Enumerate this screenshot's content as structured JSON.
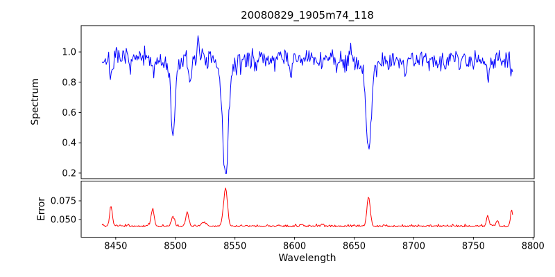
{
  "figure": {
    "background": "#ffffff"
  },
  "chart_data": [
    {
      "type": "line",
      "title": "20080829_1905m74_118",
      "ylabel": "Spectrum",
      "color": "#0000ff",
      "grid": false,
      "legend": "none",
      "xlim": [
        8421,
        8801
      ],
      "ylim": [
        0.163,
        1.174
      ],
      "yticks": [
        {
          "v": 0.2,
          "label": "0.2"
        },
        {
          "v": 0.4,
          "label": "0.4"
        },
        {
          "v": 0.6,
          "label": "0.6"
        },
        {
          "v": 0.8,
          "label": "0.8"
        },
        {
          "v": 1.0,
          "label": "1.0"
        }
      ],
      "x_start": 8438.5,
      "x_end": 8783.5,
      "x_step": 0.7,
      "continuum": 0.95,
      "noise": 0.12,
      "seed": 7,
      "absorption_lines": [
        {
          "center": 8498.0,
          "depth": 0.46,
          "width": 1.7
        },
        {
          "center": 8498.0,
          "depth": 0.05,
          "width": 5.0
        },
        {
          "center": 8542.1,
          "depth": 0.68,
          "width": 2.3
        },
        {
          "center": 8542.1,
          "depth": 0.08,
          "width": 7.0
        },
        {
          "center": 8662.1,
          "depth": 0.56,
          "width": 2.0
        },
        {
          "center": 8662.1,
          "depth": 0.07,
          "width": 6.0
        },
        {
          "center": 8446.0,
          "depth": 0.1,
          "width": 1.1
        },
        {
          "center": 8481.0,
          "depth": 0.09,
          "width": 1.2
        },
        {
          "center": 8512.0,
          "depth": 0.14,
          "width": 1.2
        },
        {
          "center": 8597.0,
          "depth": 0.1,
          "width": 0.8
        },
        {
          "center": 8693.0,
          "depth": 0.13,
          "width": 0.9
        },
        {
          "center": 8762.0,
          "depth": 0.1,
          "width": 1.0
        },
        {
          "center": 8782.0,
          "depth": 0.12,
          "width": 0.9
        }
      ],
      "emission_peaks": [
        {
          "center": 8519.5,
          "height": 0.17,
          "width": 0.9
        },
        {
          "center": 8647.0,
          "height": 0.09,
          "width": 0.8
        }
      ]
    },
    {
      "type": "line",
      "ylabel": "Error",
      "xlabel": "Wavelength",
      "color": "#ff0000",
      "grid": false,
      "legend": "none",
      "xlim": [
        8421,
        8801
      ],
      "ylim": [
        0.0264,
        0.1014
      ],
      "yticks": [
        {
          "v": 0.05,
          "label": "0.050"
        },
        {
          "v": 0.075,
          "label": "0.075"
        }
      ],
      "xticks": [
        {
          "v": 8450,
          "label": "8450"
        },
        {
          "v": 8500,
          "label": "8500"
        },
        {
          "v": 8550,
          "label": "8550"
        },
        {
          "v": 8600,
          "label": "8600"
        },
        {
          "v": 8650,
          "label": "8650"
        },
        {
          "v": 8700,
          "label": "8700"
        },
        {
          "v": 8750,
          "label": "8750"
        },
        {
          "v": 8800,
          "label": "8800"
        }
      ],
      "x_start": 8438.5,
      "x_end": 8783.5,
      "x_step": 0.7,
      "baseline": 0.0402,
      "noise": 0.005,
      "seed": 13,
      "spikes": [
        {
          "center": 8446.0,
          "height": 0.026,
          "width": 1.1
        },
        {
          "center": 8481.0,
          "height": 0.022,
          "width": 1.3
        },
        {
          "center": 8498.0,
          "height": 0.012,
          "width": 1.4
        },
        {
          "center": 8510.0,
          "height": 0.019,
          "width": 1.2
        },
        {
          "center": 8524.0,
          "height": 0.005,
          "width": 2.0
        },
        {
          "center": 8542.1,
          "height": 0.051,
          "width": 1.6
        },
        {
          "center": 8662.1,
          "height": 0.039,
          "width": 1.4
        },
        {
          "center": 8762.0,
          "height": 0.015,
          "width": 1.0
        },
        {
          "center": 8770.0,
          "height": 0.008,
          "width": 0.9
        },
        {
          "center": 8782.0,
          "height": 0.022,
          "width": 0.9
        }
      ]
    }
  ]
}
